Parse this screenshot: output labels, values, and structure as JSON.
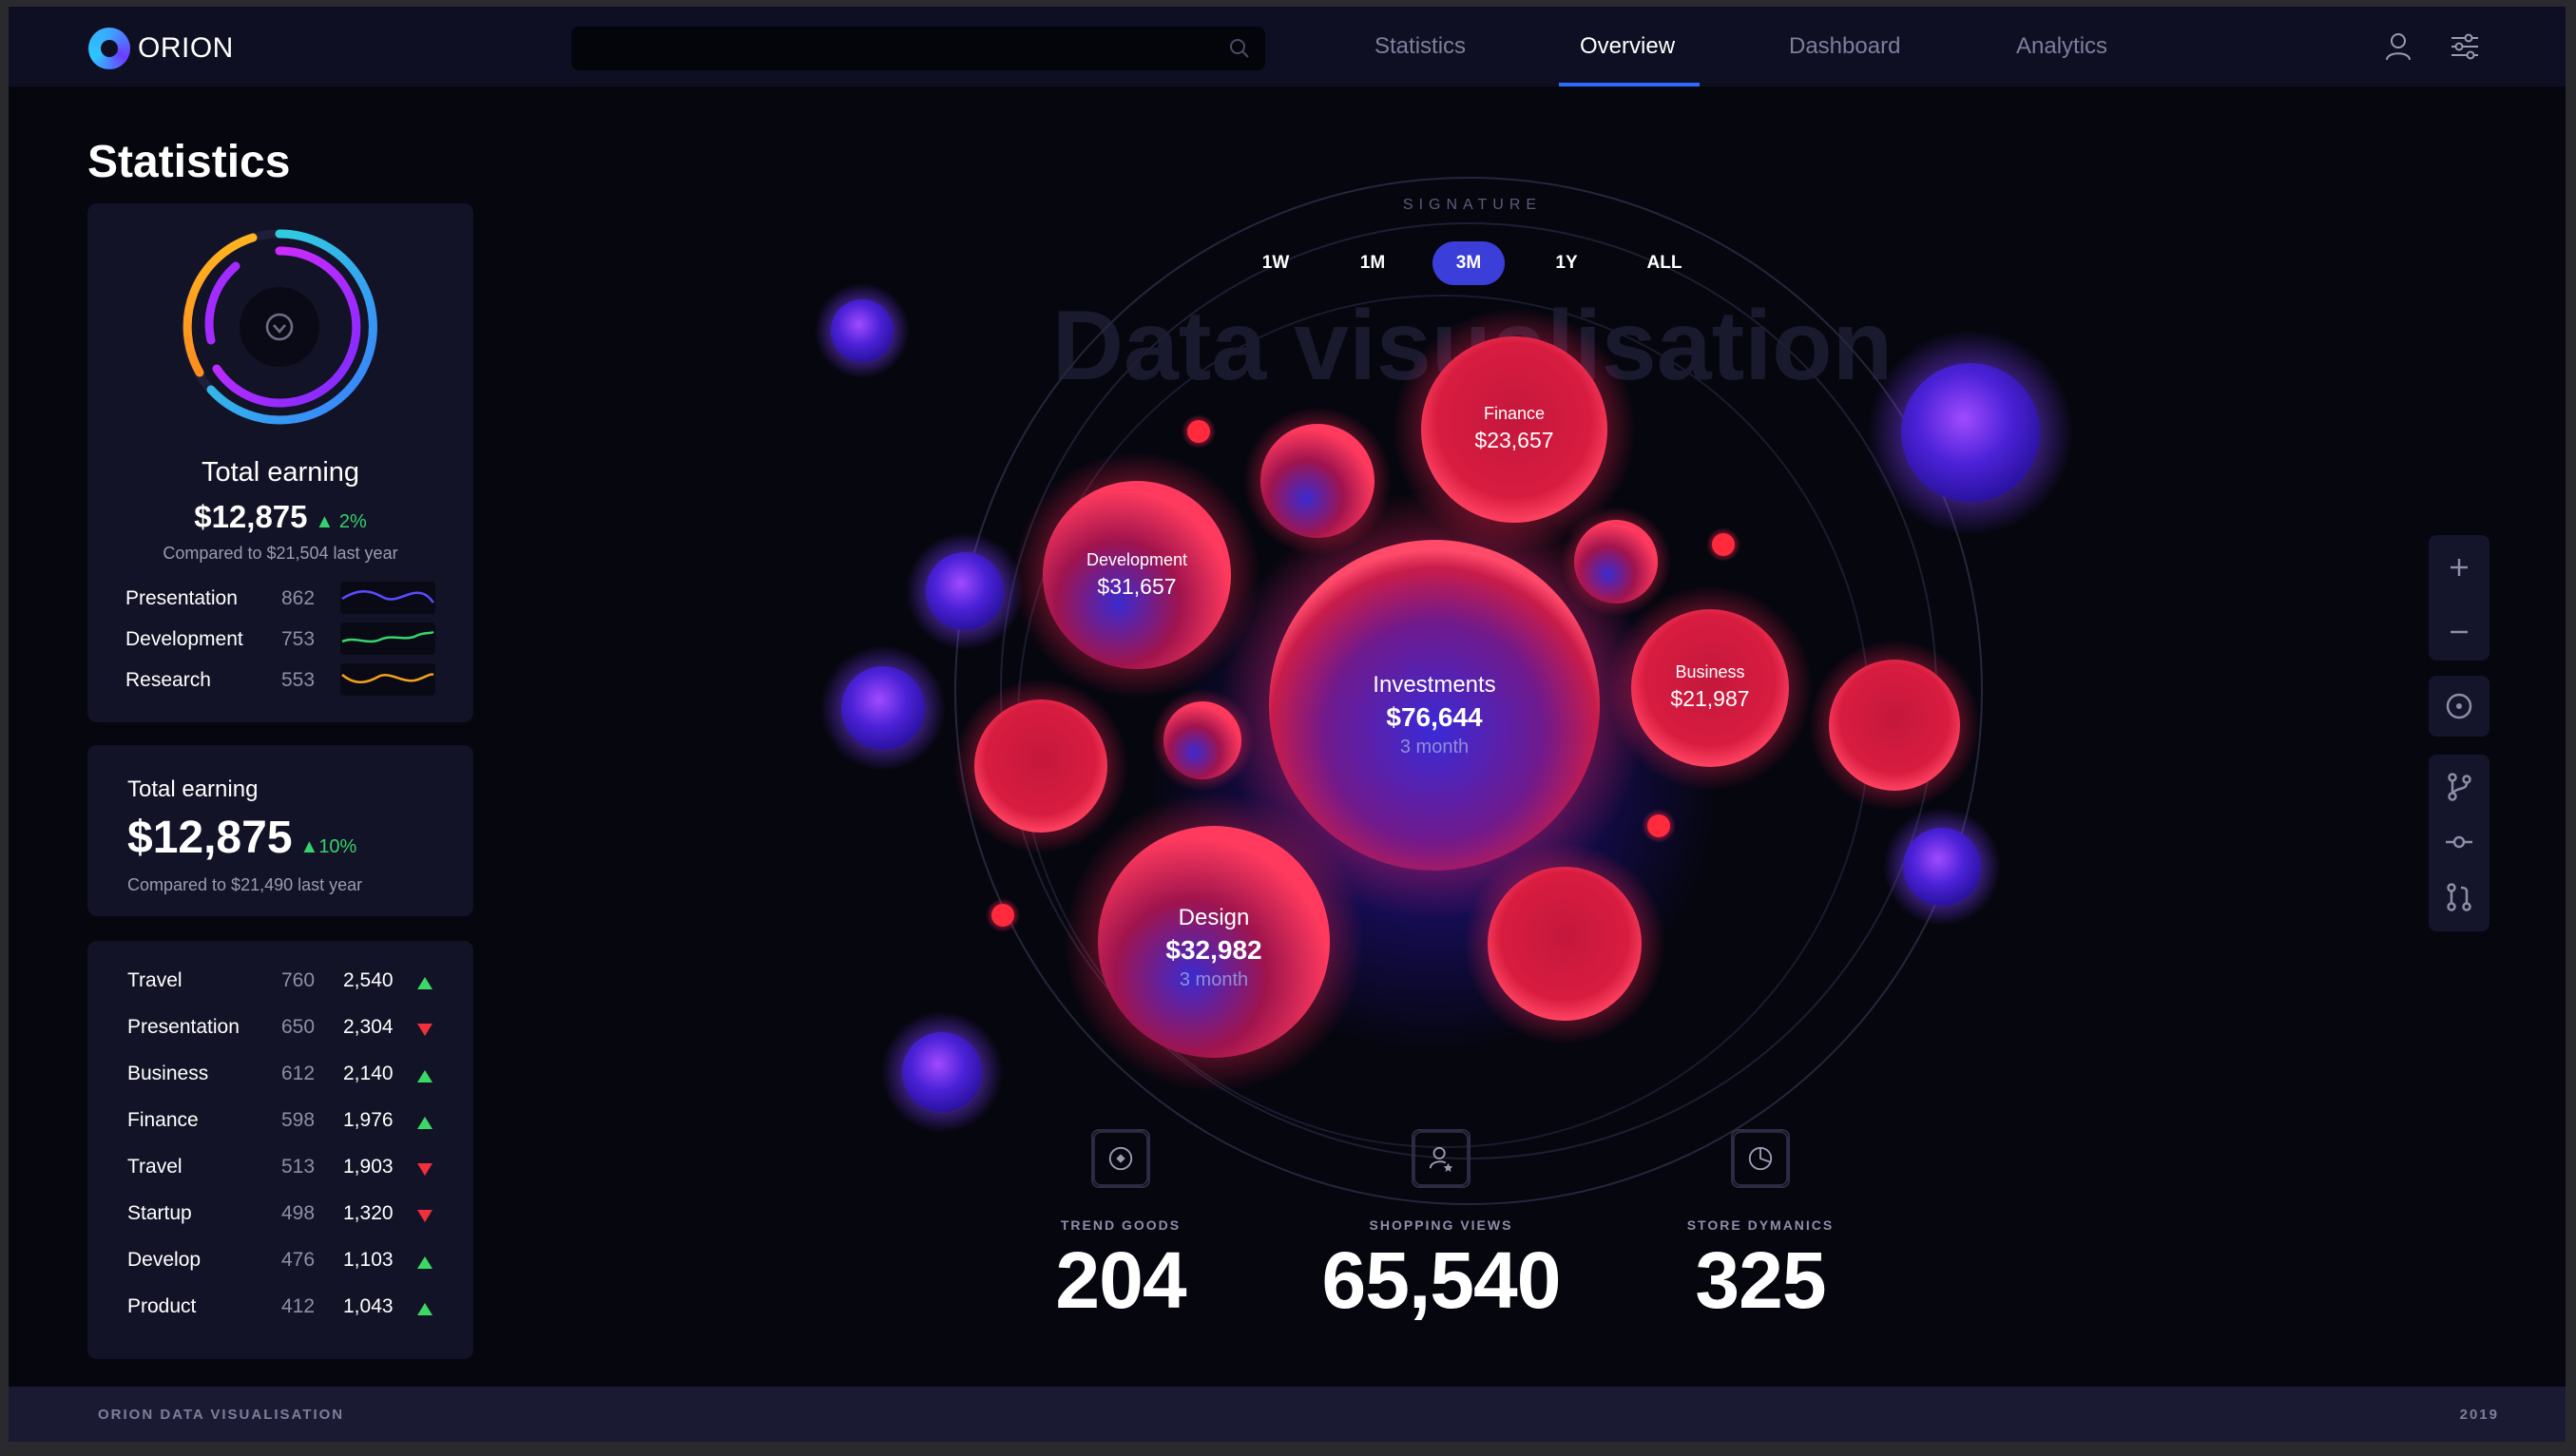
{
  "app": {
    "name": "ORION"
  },
  "search": {
    "placeholder": ""
  },
  "nav": {
    "items": [
      {
        "label": "Statistics"
      },
      {
        "label": "Overview"
      },
      {
        "label": "Dashboard"
      },
      {
        "label": "Analytics"
      }
    ],
    "active": "Overview"
  },
  "sidebar": {
    "title": "Statistics",
    "card1": {
      "title": "Total earning",
      "value": "$12,875",
      "change": "2%",
      "compare": "Compared to $21,504 last year",
      "rows": [
        {
          "label": "Presentation",
          "value": "862",
          "color": "#5b4bff"
        },
        {
          "label": "Development",
          "value": "753",
          "color": "#35d66a"
        },
        {
          "label": "Research",
          "value": "553",
          "color": "#f3a21d"
        }
      ]
    },
    "card2": {
      "title": "Total earning",
      "value": "$12,875",
      "change": "10%",
      "compare": "Compared to $21,490 last year"
    },
    "list": [
      {
        "label": "Travel",
        "count": "760",
        "amount": "2,540",
        "trend": "up"
      },
      {
        "label": "Presentation",
        "count": "650",
        "amount": "2,304",
        "trend": "down"
      },
      {
        "label": "Business",
        "count": "612",
        "amount": "2,140",
        "trend": "up"
      },
      {
        "label": "Finance",
        "count": "598",
        "amount": "1,976",
        "trend": "up"
      },
      {
        "label": "Travel",
        "count": "513",
        "amount": "1,903",
        "trend": "down"
      },
      {
        "label": "Startup",
        "count": "498",
        "amount": "1,320",
        "trend": "down"
      },
      {
        "label": "Develop",
        "count": "476",
        "amount": "1,103",
        "trend": "up"
      },
      {
        "label": "Product",
        "count": "412",
        "amount": "1,043",
        "trend": "up"
      }
    ]
  },
  "viz": {
    "signature": "SIGNATURE",
    "background_title": "Data visualisation",
    "periods": [
      "1W",
      "1M",
      "3M",
      "1Y",
      "ALL"
    ],
    "active_period": "3M",
    "bubbles": {
      "investments": {
        "name": "Investments",
        "value": "$76,644",
        "sub": "3 month"
      },
      "design": {
        "name": "Design",
        "value": "$32,982",
        "sub": "3 month"
      },
      "development": {
        "name": "Development",
        "value": "$31,657"
      },
      "finance": {
        "name": "Finance",
        "value": "$23,657"
      },
      "business": {
        "name": "Business",
        "value": "$21,987"
      }
    }
  },
  "stats": [
    {
      "label": "TREND GOODS",
      "value": "204",
      "icon": "compass-icon"
    },
    {
      "label": "SHOPPING VIEWS",
      "value": "65,540",
      "icon": "user-star-icon"
    },
    {
      "label": "STORE DYMANICS",
      "value": "325",
      "icon": "pie-chart-icon"
    }
  ],
  "footer": {
    "left": "ORION DATA VISUALISATION",
    "right": "2019"
  },
  "colors": {
    "accent": "#2f6bff",
    "bubble_red": "#e8203f",
    "bubble_violet": "#6a2cff",
    "up": "#3bd866",
    "down": "#f0303b"
  }
}
